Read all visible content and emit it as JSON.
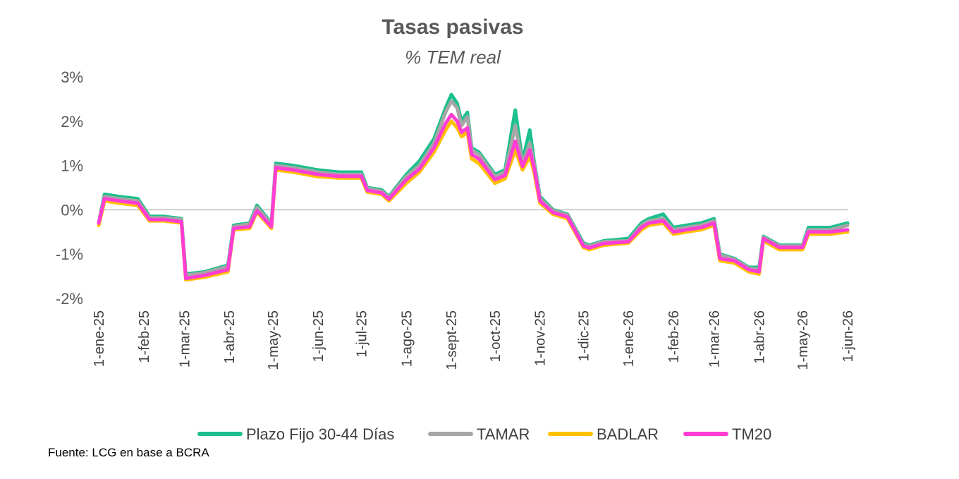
{
  "chart_data": {
    "type": "line",
    "title": "Tasas pasivas",
    "subtitle": "% TEM real",
    "xlabel": "",
    "ylabel": "",
    "ylim": [
      -2,
      3
    ],
    "yticks": [
      3,
      2,
      1,
      0,
      -1,
      -2
    ],
    "ytick_labels": [
      "3%",
      "2%",
      "1%",
      "0%",
      "-1%",
      "-2%"
    ],
    "xlim": [
      "2025-01-01",
      "2026-06-01"
    ],
    "xtick_dates": [
      "2025-01-01",
      "2025-02-01",
      "2025-03-01",
      "2025-04-01",
      "2025-05-01",
      "2025-06-01",
      "2025-07-01",
      "2025-08-01",
      "2025-09-01",
      "2025-10-01",
      "2025-11-01",
      "2025-12-01",
      "2026-01-01",
      "2026-02-01",
      "2026-03-01",
      "2026-04-01",
      "2026-05-01",
      "2026-06-01"
    ],
    "xtick_labels": [
      "1-ene-25",
      "1-feb-25",
      "1-mar-25",
      "1-abr-25",
      "1-may-25",
      "1-jun-25",
      "1-jul-25",
      "1-ago-25",
      "1-sept-25",
      "1-oct-25",
      "1-nov-25",
      "1-dic-25",
      "1-ene-26",
      "1-feb-26",
      "1-mar-26",
      "1-abr-26",
      "1-may-26",
      "1-jun-26"
    ],
    "zero_line": true,
    "grid": false,
    "legend_position": "bottom",
    "dates": [
      "2025-01-01",
      "2025-01-05",
      "2025-01-15",
      "2025-01-28",
      "2025-02-05",
      "2025-02-15",
      "2025-02-27",
      "2025-03-02",
      "2025-03-15",
      "2025-03-31",
      "2025-04-04",
      "2025-04-15",
      "2025-04-20",
      "2025-04-30",
      "2025-05-03",
      "2025-05-15",
      "2025-06-01",
      "2025-06-15",
      "2025-07-01",
      "2025-07-05",
      "2025-07-15",
      "2025-07-20",
      "2025-08-01",
      "2025-08-10",
      "2025-08-20",
      "2025-08-28",
      "2025-09-01",
      "2025-09-05",
      "2025-09-08",
      "2025-09-12",
      "2025-09-15",
      "2025-09-20",
      "2025-10-01",
      "2025-10-08",
      "2025-10-15",
      "2025-10-20",
      "2025-10-25",
      "2025-10-28",
      "2025-11-01",
      "2025-11-10",
      "2025-11-20",
      "2025-12-01",
      "2025-12-05",
      "2025-12-15",
      "2026-01-01",
      "2026-01-10",
      "2026-01-15",
      "2026-01-25",
      "2026-02-01",
      "2026-02-10",
      "2026-02-20",
      "2026-03-01",
      "2026-03-05",
      "2026-03-15",
      "2026-03-25",
      "2026-04-01",
      "2026-04-04",
      "2026-04-15",
      "2026-04-25",
      "2026-05-01",
      "2026-05-05",
      "2026-05-20",
      "2026-06-01"
    ],
    "series": [
      {
        "name": "Plazo Fijo 30-44 Días",
        "color": "#1cc08f",
        "values": [
          -0.3,
          0.35,
          0.3,
          0.25,
          -0.15,
          -0.15,
          -0.2,
          -1.45,
          -1.4,
          -1.25,
          -0.35,
          -0.3,
          0.1,
          -0.3,
          1.05,
          1.0,
          0.9,
          0.85,
          0.85,
          0.5,
          0.45,
          0.3,
          0.8,
          1.1,
          1.6,
          2.3,
          2.6,
          2.4,
          2.0,
          2.2,
          1.4,
          1.3,
          0.8,
          0.9,
          2.25,
          1.1,
          1.8,
          1.1,
          0.3,
          0.0,
          -0.1,
          -0.75,
          -0.8,
          -0.7,
          -0.65,
          -0.3,
          -0.2,
          -0.1,
          -0.4,
          -0.35,
          -0.3,
          -0.2,
          -1.0,
          -1.1,
          -1.3,
          -1.3,
          -0.6,
          -0.8,
          -0.8,
          -0.8,
          -0.4,
          -0.4,
          -0.3
        ]
      },
      {
        "name": "TAMAR",
        "color": "#a6a6a6",
        "values": [
          -0.3,
          0.3,
          0.25,
          0.2,
          -0.18,
          -0.18,
          -0.22,
          -1.48,
          -1.42,
          -1.28,
          -0.38,
          -0.32,
          0.05,
          -0.32,
          1.0,
          0.95,
          0.85,
          0.8,
          0.8,
          0.48,
          0.42,
          0.28,
          0.75,
          1.0,
          1.5,
          2.2,
          2.45,
          2.3,
          1.9,
          2.1,
          1.35,
          1.25,
          0.75,
          0.85,
          1.9,
          1.05,
          1.5,
          1.05,
          0.25,
          -0.02,
          -0.12,
          -0.78,
          -0.82,
          -0.72,
          -0.7,
          -0.35,
          -0.25,
          -0.2,
          -0.45,
          -0.4,
          -0.35,
          -0.25,
          -1.02,
          -1.12,
          -1.32,
          -1.35,
          -0.62,
          -0.82,
          -0.82,
          -0.82,
          -0.45,
          -0.45,
          -0.35
        ]
      },
      {
        "name": "BADLAR",
        "color": "#ffc000",
        "values": [
          -0.35,
          0.2,
          0.15,
          0.1,
          -0.25,
          -0.25,
          -0.3,
          -1.58,
          -1.52,
          -1.4,
          -0.45,
          -0.42,
          -0.05,
          -0.42,
          0.9,
          0.85,
          0.75,
          0.72,
          0.72,
          0.4,
          0.35,
          0.2,
          0.6,
          0.85,
          1.3,
          1.8,
          2.0,
          1.85,
          1.65,
          1.75,
          1.15,
          1.05,
          0.6,
          0.7,
          1.35,
          0.9,
          1.2,
          0.85,
          0.15,
          -0.1,
          -0.2,
          -0.85,
          -0.9,
          -0.8,
          -0.75,
          -0.45,
          -0.35,
          -0.3,
          -0.55,
          -0.5,
          -0.45,
          -0.35,
          -1.15,
          -1.2,
          -1.4,
          -1.45,
          -0.7,
          -0.9,
          -0.9,
          -0.9,
          -0.55,
          -0.55,
          -0.5
        ]
      },
      {
        "name": "TM20",
        "color": "#ff3dd4",
        "values": [
          -0.3,
          0.25,
          0.2,
          0.15,
          -0.22,
          -0.22,
          -0.27,
          -1.55,
          -1.48,
          -1.35,
          -0.42,
          -0.38,
          -0.02,
          -0.38,
          0.95,
          0.9,
          0.8,
          0.76,
          0.76,
          0.44,
          0.38,
          0.24,
          0.68,
          0.92,
          1.4,
          1.95,
          2.15,
          2.0,
          1.75,
          1.85,
          1.25,
          1.15,
          0.68,
          0.78,
          1.55,
          0.98,
          1.35,
          0.95,
          0.2,
          -0.06,
          -0.16,
          -0.82,
          -0.86,
          -0.76,
          -0.72,
          -0.4,
          -0.3,
          -0.25,
          -0.5,
          -0.45,
          -0.4,
          -0.3,
          -1.1,
          -1.15,
          -1.35,
          -1.4,
          -0.65,
          -0.85,
          -0.85,
          -0.85,
          -0.5,
          -0.5,
          -0.45
        ]
      }
    ]
  },
  "source": "Fuente: LCG en base a BCRA"
}
